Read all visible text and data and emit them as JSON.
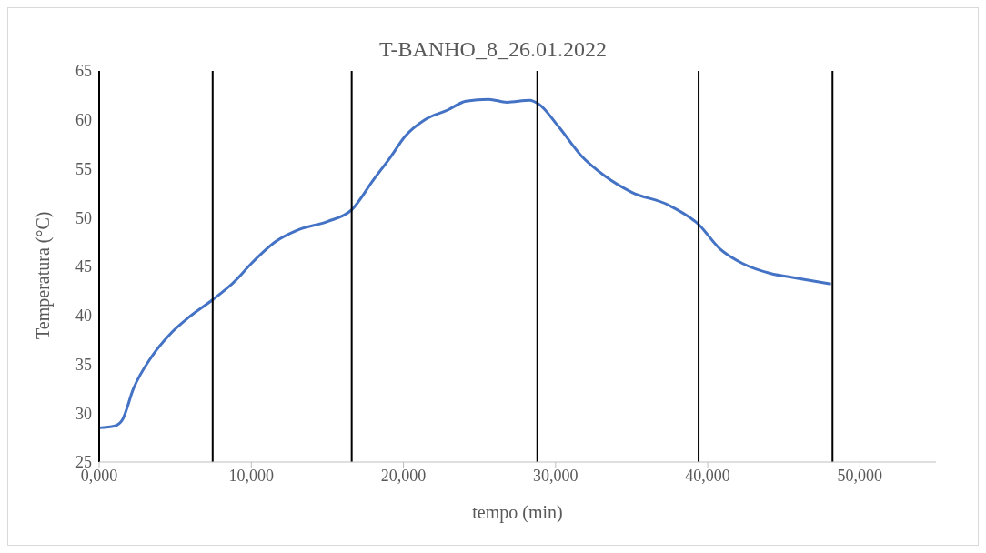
{
  "chart_data": {
    "type": "line",
    "title": "T-BANHO_8_26.01.2022",
    "xlabel": "tempo (min)",
    "ylabel": "Temperatura (°C)",
    "xlim": [
      0,
      55000
    ],
    "xticks": [
      {
        "value": 0,
        "label": "0,000"
      },
      {
        "value": 10000,
        "label": "10,000"
      },
      {
        "value": 20000,
        "label": "20,000"
      },
      {
        "value": 30000,
        "label": "30,000"
      },
      {
        "value": 40000,
        "label": "40,000"
      },
      {
        "value": 50000,
        "label": "50,000"
      }
    ],
    "ylim": [
      25,
      65
    ],
    "yticks": [
      25,
      30,
      35,
      40,
      45,
      50,
      55,
      60,
      65
    ],
    "grid": false,
    "marker": "none",
    "line_style": "solid",
    "series": [
      {
        "type": "line",
        "color": "#4472c4",
        "x": [
          0,
          1030,
          1520,
          2250,
          3460,
          4670,
          5890,
          7460,
          8920,
          10000,
          11650,
          13170,
          15000,
          16600,
          18000,
          19200,
          20100,
          21400,
          22900,
          24100,
          25600,
          26800,
          28300,
          28900,
          30200,
          31700,
          33200,
          35000,
          37400,
          39400,
          40800,
          42300,
          44100,
          45900,
          48100
        ],
        "values": [
          28.5,
          28.7,
          29.3,
          32.5,
          35.8,
          38.1,
          39.8,
          41.6,
          43.5,
          45.3,
          47.6,
          48.8,
          49.6,
          50.8,
          53.8,
          56.3,
          58.3,
          60.0,
          61.0,
          61.9,
          62.1,
          61.8,
          62.0,
          61.6,
          59.3,
          56.3,
          54.3,
          52.6,
          51.3,
          49.3,
          46.8,
          45.3,
          44.3,
          43.8,
          43.2
        ]
      }
    ],
    "ref_lines": [
      {
        "axis": "x",
        "value": 0,
        "color": "#000000"
      },
      {
        "axis": "x",
        "value": 7460,
        "color": "#000000"
      },
      {
        "axis": "x",
        "value": 16600,
        "color": "#000000"
      },
      {
        "axis": "x",
        "value": 28800,
        "color": "#000000"
      },
      {
        "axis": "x",
        "value": 39400,
        "color": "#000000"
      },
      {
        "axis": "x",
        "value": 48200,
        "color": "#000000"
      }
    ]
  }
}
